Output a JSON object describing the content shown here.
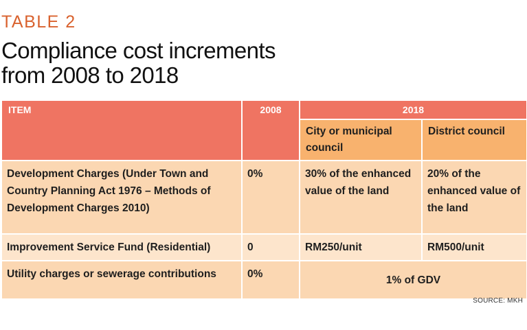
{
  "label": "TABLE 2",
  "title_line1": "Compliance cost increments",
  "title_line2": "from 2008 to 2018",
  "table": {
    "headers": {
      "item": "ITEM",
      "y2008": "2008",
      "y2018": "2018",
      "sub_city": "City or municipal council",
      "sub_district": "District council"
    },
    "rows": [
      {
        "item": "Development Charges (Under Town and Country Planning Act 1976 – Methods of Development Charges 2010)",
        "y2008": "0%",
        "city": "30% of the enhanced value of the land",
        "district": "20% of the enhanced value of the land"
      },
      {
        "item": "Improvement Service Fund (Residential)",
        "y2008": "0",
        "city": "RM250/unit",
        "district": "RM500/unit"
      },
      {
        "item": "Utility charges or sewerage contributions",
        "y2008": "0%",
        "merged": "1% of GDV"
      }
    ]
  },
  "source": "SOURCE: MKH",
  "colors": {
    "accent": "#d9622e",
    "header": "#ef7462",
    "subheader": "#f8b26e",
    "row": "#fbd7b2",
    "row_light": "#fde5cc"
  }
}
